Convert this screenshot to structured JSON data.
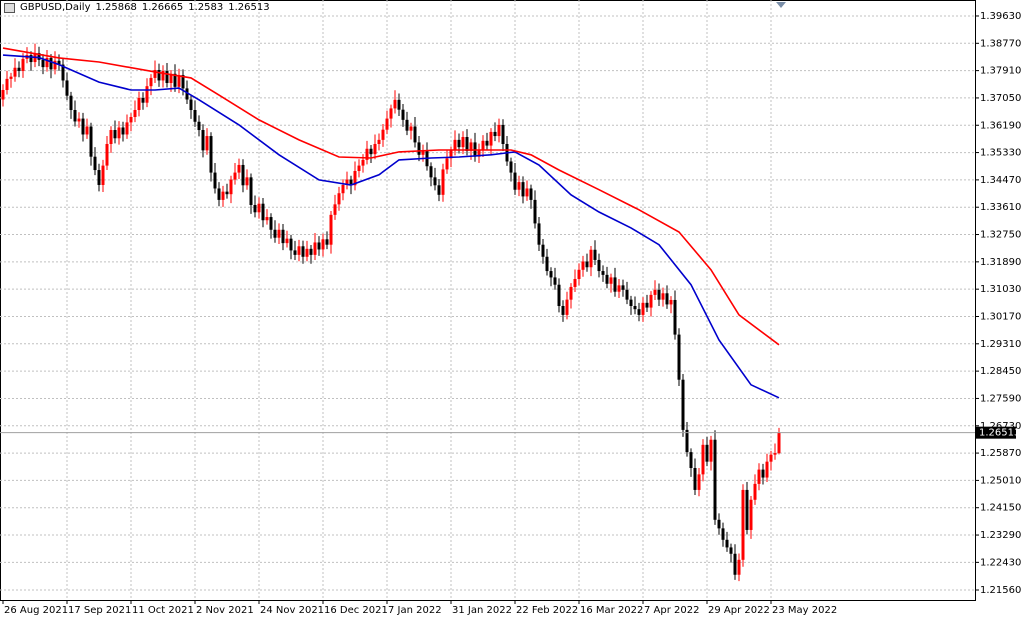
{
  "chart_data": {
    "type": "candlestick",
    "title": "GBPUSD,Daily",
    "up_color": "#ff0000",
    "down_color": "#000000",
    "grid": true,
    "ylim": [
      1.21245,
      1.40133
    ],
    "yticks": [
      {
        "value": 1.3963,
        "label": "1.39630"
      },
      {
        "value": 1.3877,
        "label": "1.38770"
      },
      {
        "value": 1.3791,
        "label": "1.37910"
      },
      {
        "value": 1.3705,
        "label": "1.37050"
      },
      {
        "value": 1.3619,
        "label": "1.36190"
      },
      {
        "value": 1.3533,
        "label": "1.35330"
      },
      {
        "value": 1.3447,
        "label": "1.34470"
      },
      {
        "value": 1.3361,
        "label": "1.33610"
      },
      {
        "value": 1.3275,
        "label": "1.32750"
      },
      {
        "value": 1.3189,
        "label": "1.31890"
      },
      {
        "value": 1.3103,
        "label": "1.31030"
      },
      {
        "value": 1.3017,
        "label": "1.30170"
      },
      {
        "value": 1.2931,
        "label": "1.29310"
      },
      {
        "value": 1.2845,
        "label": "1.28450"
      },
      {
        "value": 1.2759,
        "label": "1.27590"
      },
      {
        "value": 1.2673,
        "label": "1.26730"
      },
      {
        "value": 1.2587,
        "label": "1.25870"
      },
      {
        "value": 1.2501,
        "label": "1.25010"
      },
      {
        "value": 1.2415,
        "label": "1.24150"
      },
      {
        "value": 1.2329,
        "label": "1.23290"
      },
      {
        "value": 1.2243,
        "label": "1.22430"
      },
      {
        "value": 1.2156,
        "label": "1.21560"
      }
    ],
    "x_labels": [
      "26 Aug 2021",
      "17 Sep 2021",
      "11 Oct 2021",
      "2 Nov 2021",
      "24 Nov 2021",
      "16 Dec 2021",
      "7 Jan 2022",
      "31 Jan 2022",
      "22 Feb 2022",
      "16 Mar 2022",
      "7 Apr 2022",
      "29 Apr 2022",
      "23 May 2022"
    ],
    "ohlc": [
      [
        1.37,
        1.3748,
        1.3678,
        1.373
      ],
      [
        1.373,
        1.379,
        1.3716,
        1.3765
      ],
      [
        1.3765,
        1.3784,
        1.3737,
        1.3772
      ],
      [
        1.3772,
        1.383,
        1.3756,
        1.38
      ],
      [
        1.38,
        1.382,
        1.377,
        1.379
      ],
      [
        1.379,
        1.3846,
        1.3768,
        1.3828
      ],
      [
        1.3828,
        1.3865,
        1.3814,
        1.384
      ],
      [
        1.384,
        1.3852,
        1.379,
        1.3818
      ],
      [
        1.3818,
        1.3876,
        1.3802,
        1.3846
      ],
      [
        1.3846,
        1.3866,
        1.3805,
        1.3825
      ],
      [
        1.3825,
        1.3843,
        1.378,
        1.3802
      ],
      [
        1.3802,
        1.3856,
        1.3788,
        1.3831
      ],
      [
        1.3831,
        1.3843,
        1.3767,
        1.3795
      ],
      [
        1.3795,
        1.3852,
        1.3779,
        1.3822
      ],
      [
        1.3822,
        1.3842,
        1.379,
        1.381
      ],
      [
        1.381,
        1.3828,
        1.3738,
        1.376
      ],
      [
        1.376,
        1.3785,
        1.3698,
        1.3712
      ],
      [
        1.3712,
        1.3724,
        1.3639,
        1.3667
      ],
      [
        1.3667,
        1.3697,
        1.3615,
        1.3631
      ],
      [
        1.3631,
        1.366,
        1.3611,
        1.364
      ],
      [
        1.364,
        1.3658,
        1.3568,
        1.359
      ],
      [
        1.359,
        1.364,
        1.3576,
        1.3615
      ],
      [
        1.3615,
        1.3627,
        1.3492,
        1.352
      ],
      [
        1.352,
        1.355,
        1.3462,
        1.3478
      ],
      [
        1.3478,
        1.3498,
        1.3411,
        1.3431
      ],
      [
        1.3431,
        1.351,
        1.3409,
        1.3492
      ],
      [
        1.3492,
        1.3585,
        1.3478,
        1.356
      ],
      [
        1.356,
        1.3616,
        1.3532,
        1.3604
      ],
      [
        1.3604,
        1.3634,
        1.3562,
        1.3578
      ],
      [
        1.3578,
        1.3632,
        1.3558,
        1.3612
      ],
      [
        1.3612,
        1.363,
        1.3568,
        1.359
      ],
      [
        1.359,
        1.3653,
        1.3576,
        1.3628
      ],
      [
        1.3628,
        1.3657,
        1.36,
        1.3645
      ],
      [
        1.3645,
        1.3697,
        1.3629,
        1.3667
      ],
      [
        1.3667,
        1.3725,
        1.3647,
        1.3705
      ],
      [
        1.3705,
        1.3723,
        1.3668,
        1.369
      ],
      [
        1.369,
        1.3767,
        1.3676,
        1.3742
      ],
      [
        1.3742,
        1.378,
        1.3714,
        1.3768
      ],
      [
        1.3768,
        1.3823,
        1.3752,
        1.3793
      ],
      [
        1.3793,
        1.3813,
        1.374,
        1.376
      ],
      [
        1.376,
        1.3808,
        1.3738,
        1.379
      ],
      [
        1.379,
        1.3815,
        1.3738,
        1.3752
      ],
      [
        1.3752,
        1.3793,
        1.3724,
        1.3781
      ],
      [
        1.3781,
        1.3811,
        1.3724,
        1.374
      ],
      [
        1.374,
        1.3797,
        1.372,
        1.3777
      ],
      [
        1.3777,
        1.3795,
        1.3713,
        1.3735
      ],
      [
        1.3735,
        1.376,
        1.3686,
        1.37
      ],
      [
        1.37,
        1.3712,
        1.3639,
        1.3667
      ],
      [
        1.3667,
        1.3697,
        1.3614,
        1.363
      ],
      [
        1.363,
        1.365,
        1.3584,
        1.3604
      ],
      [
        1.3604,
        1.3622,
        1.3518,
        1.354
      ],
      [
        1.354,
        1.361,
        1.3526,
        1.3585
      ],
      [
        1.3585,
        1.3597,
        1.3442,
        1.347
      ],
      [
        1.347,
        1.35,
        1.3404,
        1.342
      ],
      [
        1.342,
        1.344,
        1.3364,
        1.3384
      ],
      [
        1.3384,
        1.3428,
        1.3362,
        1.341
      ],
      [
        1.341,
        1.3435,
        1.3388,
        1.3402
      ],
      [
        1.3402,
        1.346,
        1.3374,
        1.3448
      ],
      [
        1.3448,
        1.35,
        1.3432,
        1.347
      ],
      [
        1.347,
        1.3514,
        1.345,
        1.3494
      ],
      [
        1.3494,
        1.3512,
        1.3408,
        1.343
      ],
      [
        1.343,
        1.348,
        1.3416,
        1.3455
      ],
      [
        1.3455,
        1.3467,
        1.334,
        1.3368
      ],
      [
        1.3368,
        1.3398,
        1.3329,
        1.3345
      ],
      [
        1.3345,
        1.3392,
        1.3325,
        1.3372
      ],
      [
        1.3372,
        1.339,
        1.3298,
        1.332
      ],
      [
        1.332,
        1.3355,
        1.3306,
        1.333
      ],
      [
        1.333,
        1.3342,
        1.3262,
        1.329
      ],
      [
        1.329,
        1.332,
        1.3249,
        1.3265
      ],
      [
        1.3265,
        1.331,
        1.3245,
        1.329
      ],
      [
        1.329,
        1.3308,
        1.3226,
        1.3248
      ],
      [
        1.3248,
        1.3287,
        1.3234,
        1.3262
      ],
      [
        1.3262,
        1.3274,
        1.3197,
        1.3225
      ],
      [
        1.3225,
        1.3255,
        1.3195,
        1.3211
      ],
      [
        1.3211,
        1.3258,
        1.3191,
        1.3238
      ],
      [
        1.3238,
        1.3256,
        1.3183,
        1.3205
      ],
      [
        1.3205,
        1.3255,
        1.3191,
        1.323
      ],
      [
        1.323,
        1.3242,
        1.3183,
        1.3211
      ],
      [
        1.3211,
        1.328,
        1.3195,
        1.325
      ],
      [
        1.325,
        1.327,
        1.3208,
        1.3228
      ],
      [
        1.3228,
        1.3278,
        1.3206,
        1.326
      ],
      [
        1.326,
        1.3285,
        1.3229,
        1.3243
      ],
      [
        1.3243,
        1.3349,
        1.3215,
        1.3337
      ],
      [
        1.3337,
        1.34,
        1.3321,
        1.337
      ],
      [
        1.337,
        1.3425,
        1.335,
        1.3405
      ],
      [
        1.3405,
        1.3449,
        1.3383,
        1.3431
      ],
      [
        1.3431,
        1.3473,
        1.3417,
        1.3448
      ],
      [
        1.3448,
        1.346,
        1.3402,
        1.343
      ],
      [
        1.343,
        1.3505,
        1.3414,
        1.3475
      ],
      [
        1.3475,
        1.3512,
        1.3455,
        1.3492
      ],
      [
        1.3492,
        1.3528,
        1.347,
        1.351
      ],
      [
        1.351,
        1.357,
        1.3496,
        1.3545
      ],
      [
        1.3545,
        1.3557,
        1.35,
        1.3528
      ],
      [
        1.3528,
        1.359,
        1.3512,
        1.356
      ],
      [
        1.356,
        1.3593,
        1.354,
        1.3573
      ],
      [
        1.3573,
        1.3623,
        1.3551,
        1.3605
      ],
      [
        1.3605,
        1.3665,
        1.3591,
        1.364
      ],
      [
        1.364,
        1.3684,
        1.3612,
        1.3672
      ],
      [
        1.3672,
        1.3729,
        1.3656,
        1.3699
      ],
      [
        1.3699,
        1.3719,
        1.3648,
        1.3668
      ],
      [
        1.3668,
        1.3686,
        1.3614,
        1.3636
      ],
      [
        1.3636,
        1.3661,
        1.3588,
        1.3602
      ],
      [
        1.3602,
        1.3627,
        1.3574,
        1.3615
      ],
      [
        1.3615,
        1.3645,
        1.3549,
        1.3565
      ],
      [
        1.3565,
        1.3585,
        1.3506,
        1.3526
      ],
      [
        1.3526,
        1.3558,
        1.3504,
        1.354
      ],
      [
        1.354,
        1.3565,
        1.3476,
        1.349
      ],
      [
        1.349,
        1.3502,
        1.3427,
        1.3455
      ],
      [
        1.3455,
        1.3485,
        1.3414,
        1.343
      ],
      [
        1.343,
        1.345,
        1.338,
        1.34
      ],
      [
        1.34,
        1.3498,
        1.3378,
        1.348
      ],
      [
        1.348,
        1.354,
        1.3466,
        1.3515
      ],
      [
        1.3515,
        1.3552,
        1.3487,
        1.354
      ],
      [
        1.354,
        1.3603,
        1.3524,
        1.3573
      ],
      [
        1.3573,
        1.3593,
        1.353,
        1.355
      ],
      [
        1.355,
        1.36,
        1.3528,
        1.3582
      ],
      [
        1.3582,
        1.3607,
        1.3524,
        1.3538
      ],
      [
        1.3538,
        1.3577,
        1.351,
        1.3565
      ],
      [
        1.3565,
        1.3595,
        1.3504,
        1.352
      ],
      [
        1.352,
        1.3561,
        1.35,
        1.3541
      ],
      [
        1.3541,
        1.3588,
        1.3519,
        1.357
      ],
      [
        1.357,
        1.3595,
        1.3541,
        1.3555
      ],
      [
        1.3555,
        1.361,
        1.3527,
        1.3598
      ],
      [
        1.3598,
        1.3628,
        1.3569,
        1.3585
      ],
      [
        1.3585,
        1.364,
        1.3565,
        1.362
      ],
      [
        1.362,
        1.3638,
        1.3538,
        1.356
      ],
      [
        1.356,
        1.3585,
        1.3491,
        1.3505
      ],
      [
        1.3505,
        1.3517,
        1.3442,
        1.347
      ],
      [
        1.347,
        1.35,
        1.34,
        1.3416
      ],
      [
        1.3416,
        1.346,
        1.3396,
        1.344
      ],
      [
        1.344,
        1.3458,
        1.3373,
        1.3395
      ],
      [
        1.3395,
        1.3445,
        1.3381,
        1.342
      ],
      [
        1.342,
        1.3432,
        1.3356,
        1.3384
      ],
      [
        1.3384,
        1.3414,
        1.3294,
        1.331
      ],
      [
        1.331,
        1.333,
        1.3223,
        1.3243
      ],
      [
        1.3243,
        1.3261,
        1.3183,
        1.3205
      ],
      [
        1.3205,
        1.323,
        1.3146,
        1.316
      ],
      [
        1.316,
        1.3172,
        1.3112,
        1.314
      ],
      [
        1.314,
        1.317,
        1.3101,
        1.3117
      ],
      [
        1.3117,
        1.3137,
        1.303,
        1.305
      ],
      [
        1.305,
        1.3068,
        1.3,
        1.3022
      ],
      [
        1.3022,
        1.3095,
        1.3008,
        1.307
      ],
      [
        1.307,
        1.3122,
        1.3042,
        1.311
      ],
      [
        1.311,
        1.3165,
        1.3094,
        1.3135
      ],
      [
        1.3135,
        1.3184,
        1.3115,
        1.3164
      ],
      [
        1.3164,
        1.3208,
        1.3142,
        1.319
      ],
      [
        1.319,
        1.3215,
        1.3158,
        1.3172
      ],
      [
        1.3172,
        1.3239,
        1.3144,
        1.3227
      ],
      [
        1.3227,
        1.3257,
        1.3179,
        1.3195
      ],
      [
        1.3195,
        1.3215,
        1.314,
        1.316
      ],
      [
        1.316,
        1.3178,
        1.3126,
        1.3148
      ],
      [
        1.3148,
        1.3173,
        1.3106,
        1.312
      ],
      [
        1.312,
        1.3152,
        1.3092,
        1.314
      ],
      [
        1.314,
        1.317,
        1.3079,
        1.3095
      ],
      [
        1.3095,
        1.3135,
        1.3075,
        1.3115
      ],
      [
        1.3115,
        1.3133,
        1.3079,
        1.3101
      ],
      [
        1.3101,
        1.3126,
        1.3056,
        1.307
      ],
      [
        1.307,
        1.3082,
        1.3022,
        1.305
      ],
      [
        1.305,
        1.308,
        1.3024,
        1.304
      ],
      [
        1.304,
        1.306,
        1.3002,
        1.3022
      ],
      [
        1.3022,
        1.3078,
        1.3,
        1.306
      ],
      [
        1.306,
        1.3085,
        1.3031,
        1.3045
      ],
      [
        1.3045,
        1.3097,
        1.3017,
        1.3085
      ],
      [
        1.3085,
        1.3131,
        1.3069,
        1.3101
      ],
      [
        1.3101,
        1.3121,
        1.305,
        1.307
      ],
      [
        1.307,
        1.3108,
        1.3048,
        1.309
      ],
      [
        1.309,
        1.3115,
        1.3041,
        1.3055
      ],
      [
        1.3055,
        1.3081,
        1.3027,
        1.3069
      ],
      [
        1.3069,
        1.3099,
        1.2944,
        1.296
      ],
      [
        1.296,
        1.298,
        1.2798,
        1.2818
      ],
      [
        1.2818,
        1.2836,
        1.2638,
        1.266
      ],
      [
        1.266,
        1.2685,
        1.2576,
        1.259
      ],
      [
        1.259,
        1.2602,
        1.2512,
        1.254
      ],
      [
        1.254,
        1.257,
        1.2455,
        1.2471
      ],
      [
        1.2471,
        1.254,
        1.2451,
        1.252
      ],
      [
        1.252,
        1.2631,
        1.2498,
        1.2613
      ],
      [
        1.2613,
        1.2638,
        1.2546,
        1.256
      ],
      [
        1.256,
        1.2641,
        1.2532,
        1.2629
      ],
      [
        1.2629,
        1.2659,
        1.2361,
        1.2377
      ],
      [
        1.2377,
        1.2397,
        1.233,
        1.235
      ],
      [
        1.235,
        1.2368,
        1.2292,
        1.2314
      ],
      [
        1.2314,
        1.2339,
        1.2276,
        1.229
      ],
      [
        1.229,
        1.2302,
        1.2242,
        1.227
      ],
      [
        1.227,
        1.23,
        1.2188,
        1.2204
      ],
      [
        1.2204,
        1.2271,
        1.2184,
        1.2251
      ],
      [
        1.2251,
        1.2489,
        1.2229,
        1.2471
      ],
      [
        1.2471,
        1.2496,
        1.2331,
        1.2345
      ],
      [
        1.2345,
        1.2452,
        1.2317,
        1.244
      ],
      [
        1.244,
        1.252,
        1.2424,
        1.249
      ],
      [
        1.249,
        1.2555,
        1.247,
        1.2535
      ],
      [
        1.2535,
        1.2553,
        1.2488,
        1.251
      ],
      [
        1.251,
        1.2585,
        1.2496,
        1.256
      ],
      [
        1.256,
        1.2594,
        1.2532,
        1.2582
      ],
      [
        1.2582,
        1.2617,
        1.2566,
        1.2587
      ],
      [
        1.25868,
        1.26665,
        1.2583,
        1.26513
      ]
    ],
    "series": [
      {
        "color": "#0000cd",
        "x": [
          0,
          9,
          14,
          24,
          32,
          38,
          44,
          49,
          59,
          69,
          79,
          87,
          94,
          99,
          107,
          114,
          122,
          128,
          134,
          142,
          149,
          157,
          164,
          172,
          179,
          187,
          194
        ],
        "values": [
          1.384,
          1.3832,
          1.381,
          1.3755,
          1.373,
          1.373,
          1.3736,
          1.3699,
          1.362,
          1.3526,
          1.3447,
          1.3431,
          1.3463,
          1.351,
          1.3516,
          1.3519,
          1.3526,
          1.3535,
          1.3494,
          1.34,
          1.3346,
          1.3296,
          1.3243,
          1.3117,
          1.2943,
          1.2802,
          1.2761
        ]
      },
      {
        "color": "#ff0000",
        "x": [
          0,
          14,
          24,
          38,
          47,
          54,
          64,
          74,
          84,
          92,
          99,
          109,
          119,
          127,
          132,
          139,
          149,
          159,
          169,
          177,
          184,
          194
        ],
        "values": [
          1.3862,
          1.3831,
          1.3818,
          1.3787,
          1.3768,
          1.3714,
          1.3636,
          1.3573,
          1.3519,
          1.3516,
          1.3535,
          1.3541,
          1.3541,
          1.3541,
          1.3526,
          1.3478,
          1.3416,
          1.3353,
          1.3283,
          1.3164,
          1.3022,
          1.2928
        ]
      }
    ]
  }
}
